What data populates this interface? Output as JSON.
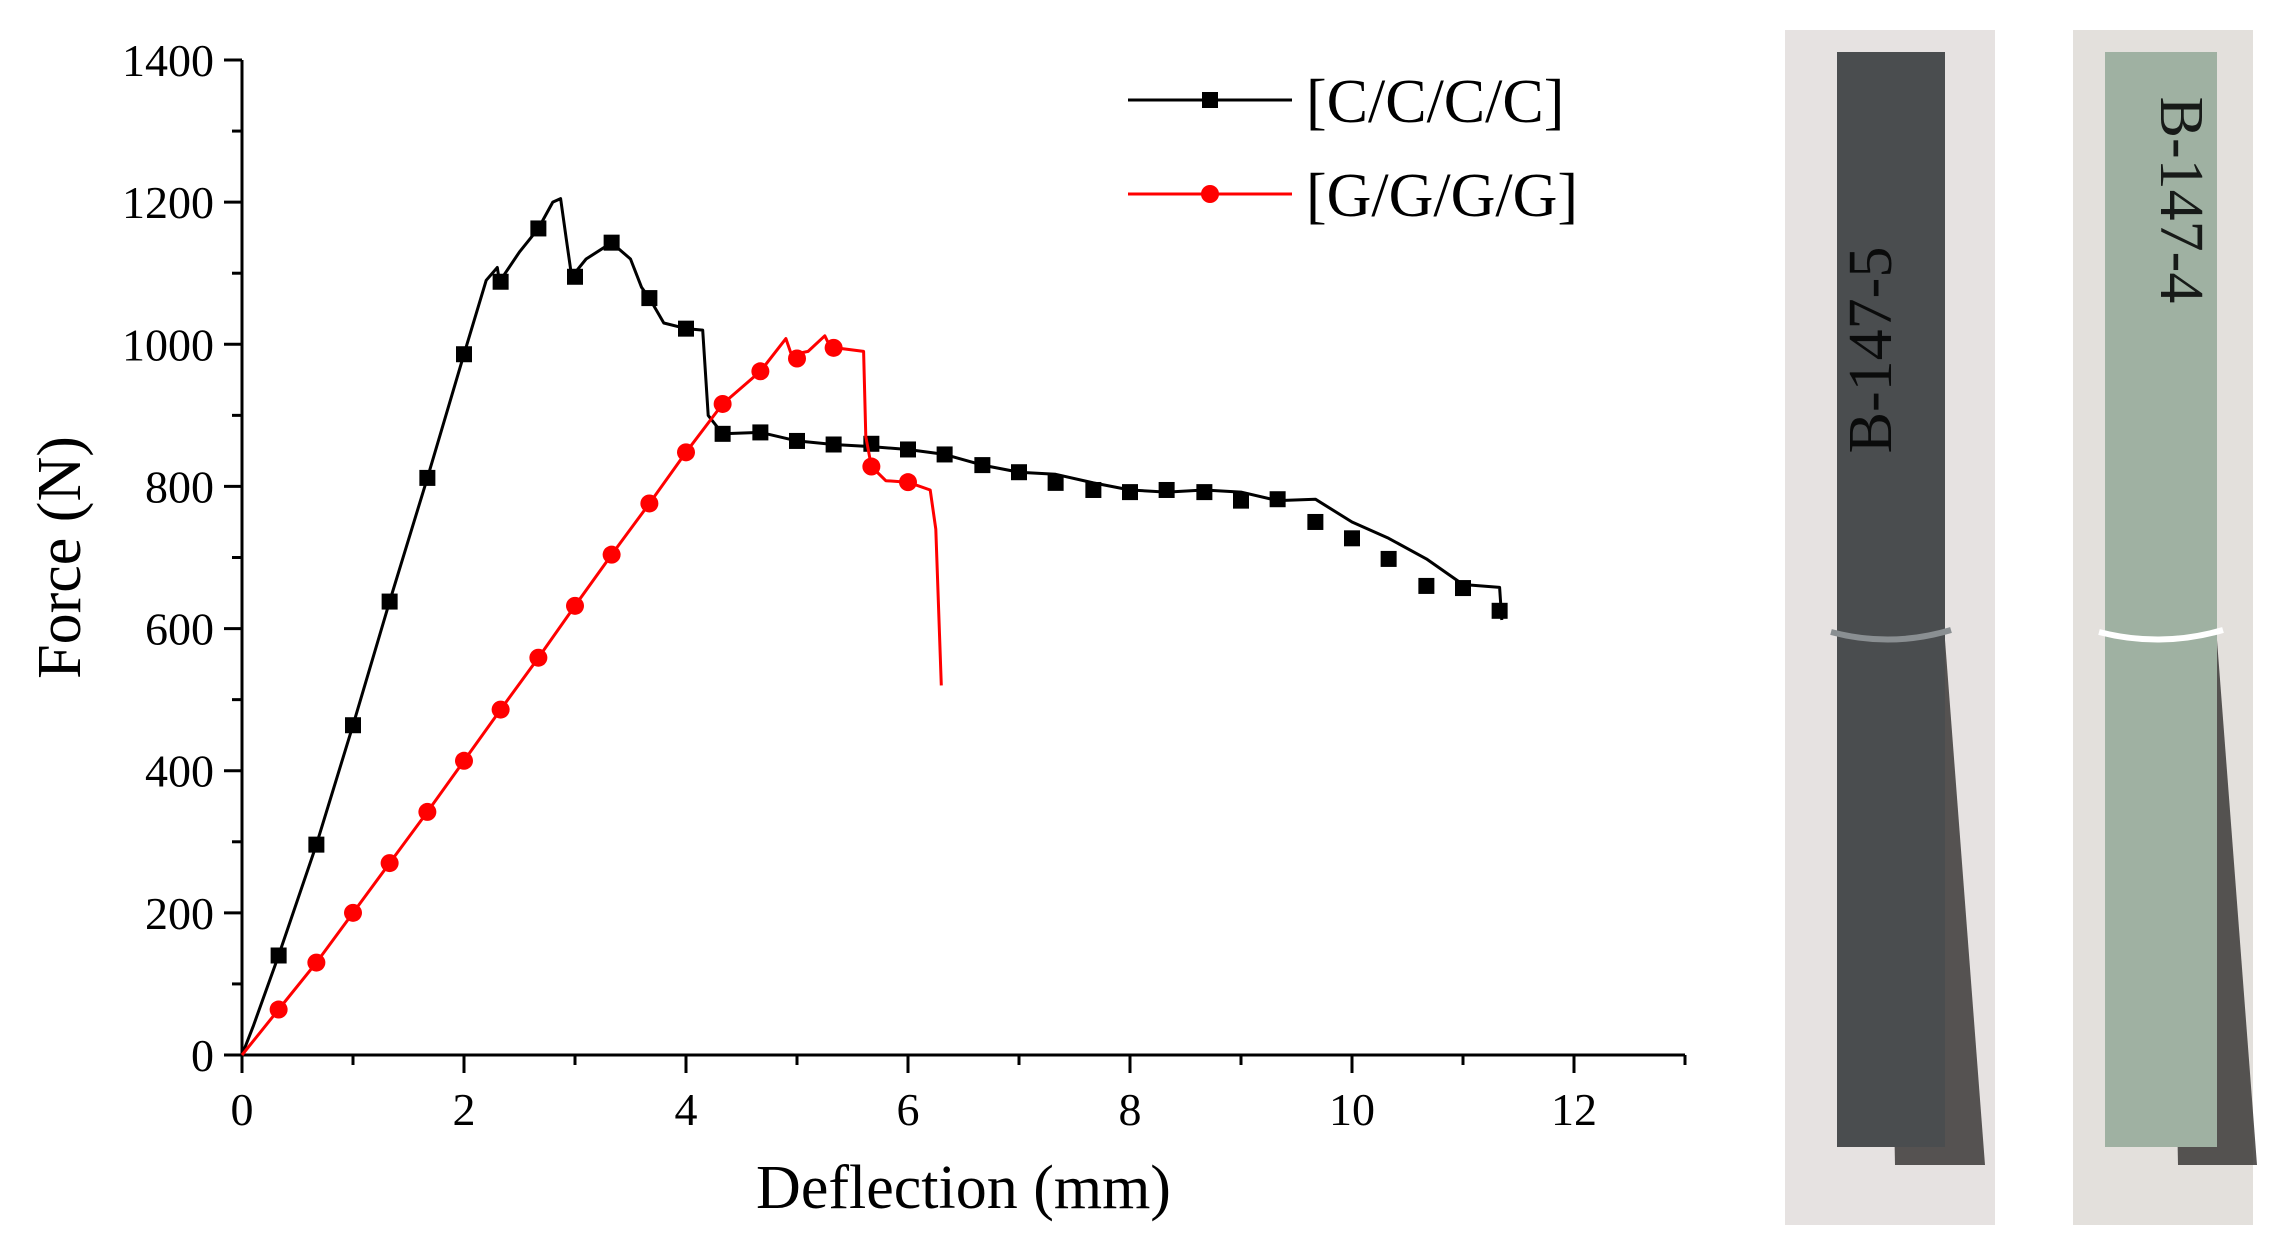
{
  "chart_data": {
    "type": "line",
    "title": "",
    "xlabel": "Deflection (mm)",
    "ylabel": "Force (N)",
    "xlim": [
      0,
      13
    ],
    "ylim": [
      0,
      1400
    ],
    "xticks": [
      0,
      2,
      4,
      6,
      8,
      10,
      12
    ],
    "yticks": [
      0,
      200,
      400,
      600,
      800,
      1000,
      1200,
      1400
    ],
    "xtick_labels": [
      "0",
      "2",
      "4",
      "6",
      "8",
      "10",
      "12"
    ],
    "ytick_labels": [
      "0",
      "200",
      "400",
      "600",
      "800",
      "1000",
      "1200",
      "1400"
    ],
    "grid": false,
    "legend_position": "top-right",
    "series": [
      {
        "name": "[C/C/C/C]",
        "color": "#000000",
        "marker": "square",
        "line": [
          [
            0,
            0
          ],
          [
            0.1,
            40
          ],
          [
            0.33,
            140
          ],
          [
            0.67,
            296
          ],
          [
            1.0,
            464
          ],
          [
            1.33,
            638
          ],
          [
            1.67,
            812
          ],
          [
            2.0,
            986
          ],
          [
            2.2,
            1090
          ],
          [
            2.3,
            1108
          ],
          [
            2.32,
            1088
          ],
          [
            2.5,
            1130
          ],
          [
            2.67,
            1163
          ],
          [
            2.8,
            1200
          ],
          [
            2.87,
            1205
          ],
          [
            2.92,
            1150
          ],
          [
            2.97,
            1095
          ],
          [
            3.1,
            1120
          ],
          [
            3.33,
            1143
          ],
          [
            3.5,
            1120
          ],
          [
            3.6,
            1080
          ],
          [
            3.67,
            1065
          ],
          [
            3.8,
            1030
          ],
          [
            4.0,
            1022
          ],
          [
            4.15,
            1020
          ],
          [
            4.2,
            900
          ],
          [
            4.33,
            874
          ],
          [
            4.67,
            876
          ],
          [
            5.0,
            864
          ],
          [
            5.33,
            859
          ],
          [
            5.67,
            856
          ],
          [
            6.0,
            852
          ],
          [
            6.33,
            845
          ],
          [
            6.67,
            830
          ],
          [
            7.0,
            820
          ],
          [
            7.33,
            817
          ],
          [
            7.67,
            805
          ],
          [
            8.0,
            795
          ],
          [
            8.33,
            792
          ],
          [
            8.67,
            795
          ],
          [
            9.0,
            792
          ],
          [
            9.33,
            780
          ],
          [
            9.67,
            782
          ],
          [
            10.0,
            750
          ],
          [
            10.33,
            727
          ],
          [
            10.67,
            698
          ],
          [
            11.0,
            662
          ],
          [
            11.33,
            658
          ],
          [
            11.35,
            612
          ]
        ],
        "markers_x": [
          0.33,
          0.67,
          1.0,
          1.33,
          1.67,
          2.0,
          2.33,
          2.67,
          3.0,
          3.33,
          3.67,
          4.0,
          4.33,
          4.67,
          5.0,
          5.33,
          5.67,
          6.0,
          6.33,
          6.67,
          7.0,
          7.33,
          7.67,
          8.0,
          8.33,
          8.67,
          9.0,
          9.33,
          9.67,
          10.0,
          10.33,
          10.67,
          11.0,
          11.33
        ],
        "markers_y": [
          140,
          296,
          464,
          638,
          812,
          986,
          1088,
          1163,
          1095,
          1143,
          1065,
          1022,
          874,
          876,
          864,
          859,
          860,
          852,
          845,
          830,
          820,
          805,
          795,
          792,
          795,
          792,
          780,
          782,
          750,
          727,
          698,
          660,
          657,
          625
        ]
      },
      {
        "name": "[G/G/G/G]",
        "color": "#ff0000",
        "marker": "circle",
        "line": [
          [
            0,
            0
          ],
          [
            0.33,
            64
          ],
          [
            0.67,
            130
          ],
          [
            1.0,
            200
          ],
          [
            1.33,
            270
          ],
          [
            1.67,
            342
          ],
          [
            2.0,
            414
          ],
          [
            2.33,
            486
          ],
          [
            2.67,
            559
          ],
          [
            3.0,
            632
          ],
          [
            3.33,
            704
          ],
          [
            3.67,
            776
          ],
          [
            4.0,
            848
          ],
          [
            4.33,
            916
          ],
          [
            4.67,
            962
          ],
          [
            4.9,
            1008
          ],
          [
            4.95,
            985
          ],
          [
            5.1,
            990
          ],
          [
            5.25,
            1012
          ],
          [
            5.3,
            996
          ],
          [
            5.6,
            990
          ],
          [
            5.62,
            870
          ],
          [
            5.67,
            828
          ],
          [
            5.8,
            808
          ],
          [
            6.0,
            806
          ],
          [
            6.2,
            795
          ],
          [
            6.25,
            740
          ],
          [
            6.3,
            520
          ]
        ],
        "markers_x": [
          0.33,
          0.67,
          1.0,
          1.33,
          1.67,
          2.0,
          2.33,
          2.67,
          3.0,
          3.33,
          3.67,
          4.0,
          4.33,
          4.67,
          5.0,
          5.33,
          5.67,
          6.0
        ],
        "markers_y": [
          64,
          130,
          200,
          270,
          342,
          414,
          486,
          559,
          632,
          704,
          776,
          848,
          916,
          962,
          980,
          995,
          828,
          806
        ]
      }
    ]
  },
  "photos": [
    {
      "label": "B-147-5",
      "specimen_color": "#4a4d4f",
      "label_color": "#c0283a",
      "background": "#e6e2e1"
    },
    {
      "label": "B-147-4",
      "specimen_color": "#9fb1a2",
      "label_color": "#c0283a",
      "background": "#e3e0dc"
    }
  ]
}
